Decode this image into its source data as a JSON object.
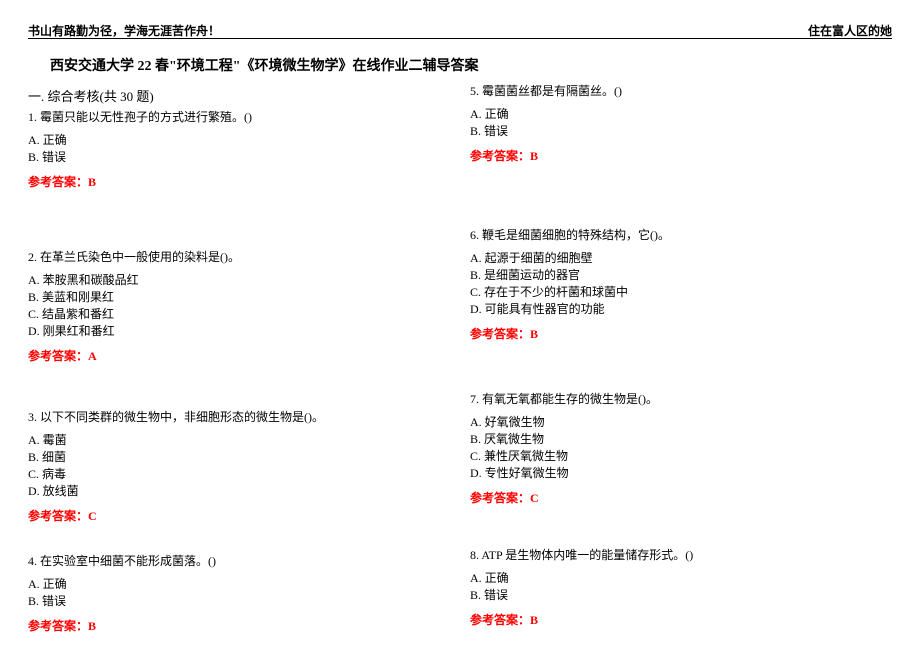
{
  "header": {
    "left": "书山有路勤为径，学海无涯苦作舟！",
    "right": "住在富人区的她"
  },
  "title": "西安交通大学 22 春\"环境工程\"《环境微生物学》在线作业二辅导答案",
  "section_heading": "一. 综合考核(共 30 题)",
  "answer_label_prefix": "参考答案：",
  "questions": [
    {
      "text": "1. 霉菌只能以无性孢子的方式进行繁殖。()",
      "options": [
        "A. 正确",
        "B. 错误"
      ],
      "answer": "B"
    },
    {
      "text": "2. 在革兰氏染色中一般使用的染料是()。",
      "options": [
        "A. 苯胺黑和碳酸品红",
        "B. 美蓝和刚果红",
        "C. 结晶紫和番红",
        "D. 刚果红和番红"
      ],
      "answer": "A"
    },
    {
      "text": "3. 以下不同类群的微生物中，非细胞形态的微生物是()。",
      "options": [
        "A. 霉菌",
        "B. 细菌",
        "C. 病毒",
        "D. 放线菌"
      ],
      "answer": "C"
    },
    {
      "text": "4. 在实验室中细菌不能形成菌落。()",
      "options": [
        "A. 正确",
        "B. 错误"
      ],
      "answer": "B"
    },
    {
      "text": "5. 霉菌菌丝都是有隔菌丝。()",
      "options": [
        "A. 正确",
        "B. 错误"
      ],
      "answer": "B"
    },
    {
      "text": "6. 鞭毛是细菌细胞的特殊结构，它()。",
      "options": [
        "A. 起源于细菌的细胞壁",
        "B. 是细菌运动的器官",
        "C. 存在于不少的杆菌和球菌中",
        "D. 可能具有性器官的功能"
      ],
      "answer": "B"
    },
    {
      "text": "7. 有氧无氧都能生存的微生物是()。",
      "options": [
        "A. 好氧微生物",
        "B. 厌氧微生物",
        "C. 兼性厌氧微生物",
        "D. 专性好氧微生物"
      ],
      "answer": "C"
    },
    {
      "text": "8. ATP 是生物体内唯一的能量储存形式。()",
      "options": [
        "A. 正确",
        "B. 错误"
      ],
      "answer": "B"
    }
  ]
}
